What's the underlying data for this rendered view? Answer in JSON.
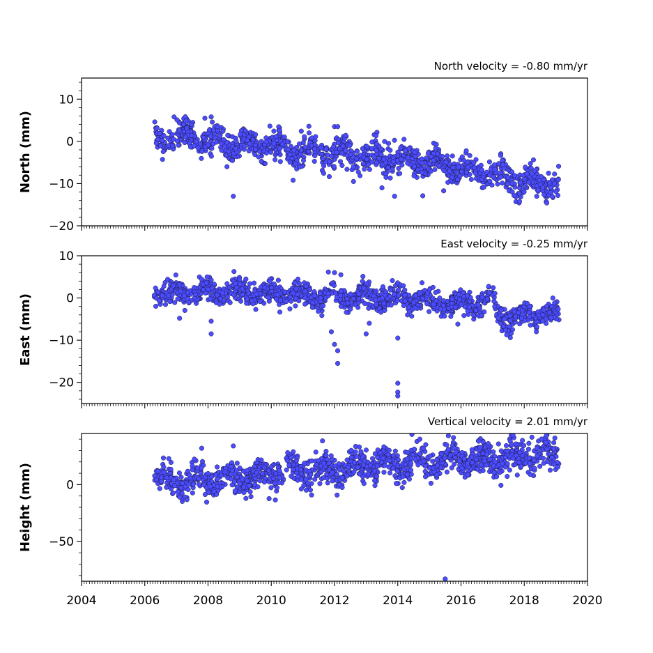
{
  "chart_data": {
    "type": "scatter",
    "marker_color": "#4b4bff",
    "marker_edge_color": "#1a1a3a",
    "xlim": [
      2004,
      2020
    ],
    "xticks": [
      2004,
      2006,
      2008,
      2010,
      2012,
      2014,
      2016,
      2018,
      2020
    ],
    "panels": [
      {
        "id": "north",
        "title": "North velocity = -0.80 mm/yr",
        "ylabel": "North (mm)",
        "ylim": [
          -20,
          15
        ],
        "yticks": [
          10,
          0,
          -10,
          -20
        ],
        "tick_labels": [
          "10",
          "0",
          "−10",
          "−20"
        ],
        "trend": [
          [
            2006.3,
            0.5
          ],
          [
            2007.0,
            1.0
          ],
          [
            2008.0,
            0.5
          ],
          [
            2009.0,
            -0.5
          ],
          [
            2010.0,
            -1.0
          ],
          [
            2011.0,
            -2.0
          ],
          [
            2012.0,
            -3.0
          ],
          [
            2013.0,
            -3.5
          ],
          [
            2014.0,
            -4.0
          ],
          [
            2015.0,
            -5.0
          ],
          [
            2016.0,
            -6.5
          ],
          [
            2017.0,
            -8.0
          ],
          [
            2018.0,
            -9.5
          ],
          [
            2019.1,
            -10.0
          ]
        ],
        "spread": 1.6,
        "outliers": [
          [
            2008.8,
            -13.0
          ],
          [
            2013.9,
            -13.0
          ],
          [
            2012.0,
            3.5
          ],
          [
            2012.1,
            3.5
          ],
          [
            2007.9,
            5.5
          ],
          [
            2008.1,
            5.8
          ],
          [
            2008.6,
            -6.0
          ],
          [
            2013.5,
            -11.0
          ],
          [
            2012.6,
            -9.5
          ]
        ]
      },
      {
        "id": "east",
        "title": "East velocity = -0.25 mm/yr",
        "ylabel": "East (mm)",
        "ylim": [
          -25,
          10
        ],
        "yticks": [
          10,
          0,
          -10,
          -20
        ],
        "tick_labels": [
          "10",
          "0",
          "−10",
          "−20"
        ],
        "trend": [
          [
            2006.3,
            1.0
          ],
          [
            2008.0,
            1.5
          ],
          [
            2010.0,
            1.0
          ],
          [
            2012.0,
            0.5
          ],
          [
            2014.0,
            0.0
          ],
          [
            2016.0,
            -1.5
          ],
          [
            2017.0,
            -0.5
          ],
          [
            2017.2,
            -4.5
          ],
          [
            2019.1,
            -3.5
          ]
        ],
        "spread": 1.3,
        "outliers": [
          [
            2008.1,
            -5.5
          ],
          [
            2008.1,
            -8.5
          ],
          [
            2011.9,
            -8.0
          ],
          [
            2012.0,
            -11.0
          ],
          [
            2012.1,
            -12.5
          ],
          [
            2012.1,
            -15.5
          ],
          [
            2013.0,
            -8.5
          ],
          [
            2013.1,
            -6.0
          ],
          [
            2014.0,
            -20.2
          ],
          [
            2014.0,
            -22.3
          ],
          [
            2014.0,
            -23.2
          ],
          [
            2014.0,
            -9.5
          ],
          [
            2015.9,
            -6.2
          ],
          [
            2012.0,
            6.0
          ],
          [
            2012.2,
            5.5
          ],
          [
            2007.1,
            -4.8
          ]
        ]
      },
      {
        "id": "height",
        "title": "Vertical velocity = 2.01 mm/yr",
        "ylabel": "Height (mm)",
        "ylim": [
          -85,
          45
        ],
        "yticks": [
          0,
          -50
        ],
        "tick_labels": [
          "0",
          "−50"
        ],
        "trend": [
          [
            2006.3,
            5.0
          ],
          [
            2007.0,
            2.0
          ],
          [
            2008.0,
            3.0
          ],
          [
            2009.0,
            5.0
          ],
          [
            2010.0,
            10.0
          ],
          [
            2011.0,
            12.0
          ],
          [
            2012.0,
            13.0
          ],
          [
            2013.0,
            17.0
          ],
          [
            2014.0,
            18.0
          ],
          [
            2015.0,
            20.0
          ],
          [
            2016.0,
            22.0
          ],
          [
            2017.0,
            23.0
          ],
          [
            2018.0,
            25.0
          ],
          [
            2019.1,
            27.0
          ]
        ],
        "spread": 6.5,
        "outliers": [
          [
            2015.5,
            -83.0
          ],
          [
            2015.6,
            43.0
          ],
          [
            2018.7,
            43.0
          ],
          [
            2014.7,
            40.0
          ],
          [
            2008.8,
            34.0
          ],
          [
            2007.8,
            32.0
          ]
        ]
      }
    ]
  }
}
